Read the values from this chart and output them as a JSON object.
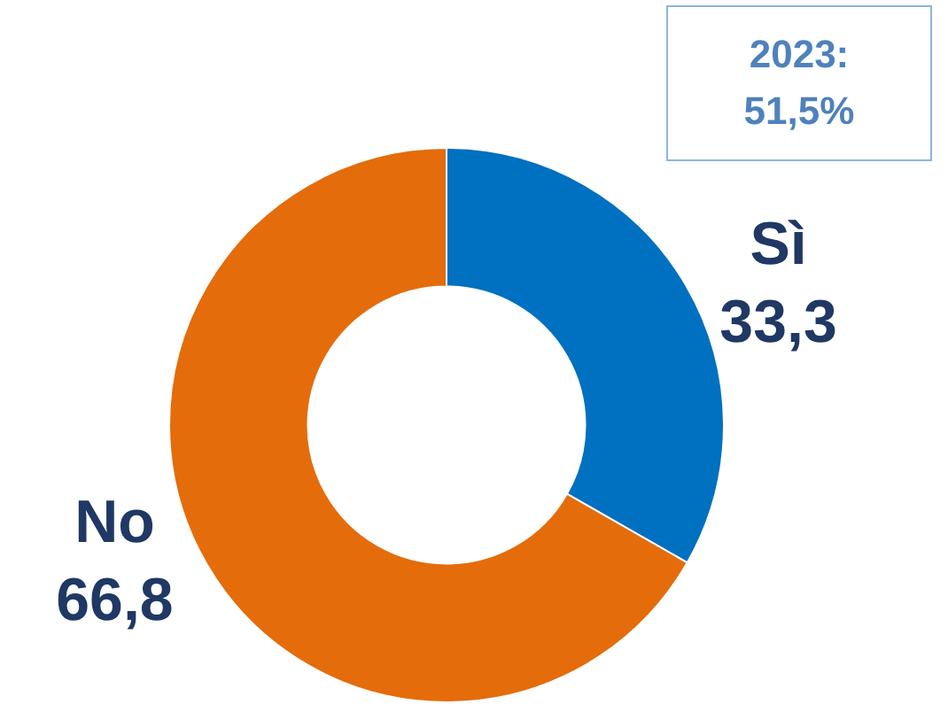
{
  "chart_data": {
    "type": "donut",
    "categories": [
      "Sì",
      "No"
    ],
    "values": [
      33.3,
      66.8
    ],
    "value_labels": [
      "33,3",
      "66,8"
    ],
    "colors": [
      "#0070c0",
      "#e46c0a"
    ],
    "annotations": [
      "2023: 51,5%"
    ],
    "legend": false
  }
}
